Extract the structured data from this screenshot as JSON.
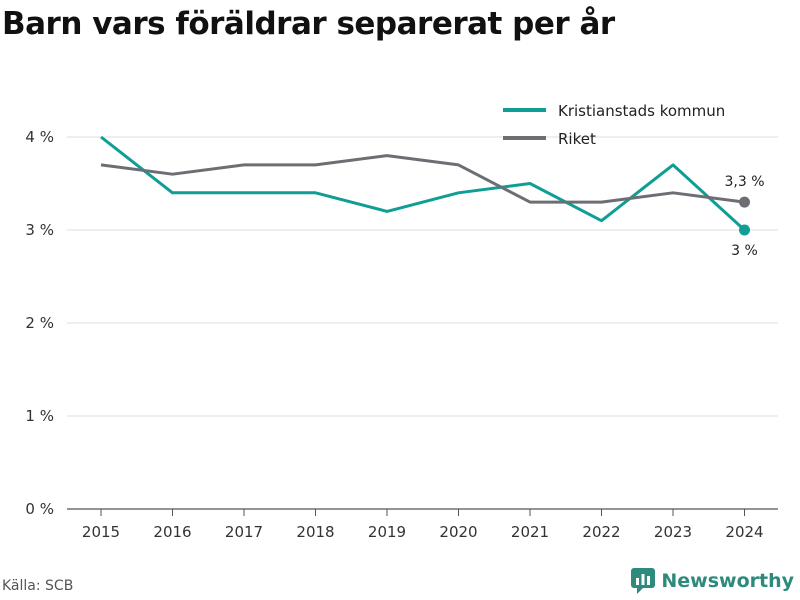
{
  "header": {
    "title": "Barn vars föräldrar separerat per år"
  },
  "footer": {
    "source": "Källa: SCB",
    "brand": "Newsworthy"
  },
  "colors": {
    "kristianstad": "#0f9e95",
    "riket": "#6e6d73",
    "grid": "#dddddd",
    "brand": "#2f8a7e"
  },
  "chart_data": {
    "type": "line",
    "title": "Barn vars föräldrar separerat per år",
    "x": [
      2015,
      2016,
      2017,
      2018,
      2019,
      2020,
      2021,
      2022,
      2023,
      2024
    ],
    "ylim": [
      0,
      4
    ],
    "yticks": [
      0,
      1,
      2,
      3,
      4
    ],
    "ytick_labels": [
      "0 %",
      "1 %",
      "2 %",
      "3 %",
      "4 %"
    ],
    "grid": "horizontal",
    "legend_position": "top-right",
    "series": [
      {
        "name": "Kristianstads kommun",
        "color": "#0f9e95",
        "values": [
          4.0,
          3.4,
          3.4,
          3.4,
          3.2,
          3.4,
          3.5,
          3.1,
          3.7,
          3.0
        ],
        "end_label": "3 %"
      },
      {
        "name": "Riket",
        "color": "#6e6d73",
        "values": [
          3.7,
          3.6,
          3.7,
          3.7,
          3.8,
          3.7,
          3.3,
          3.3,
          3.4,
          3.3
        ],
        "end_label": "3,3 %"
      }
    ]
  }
}
